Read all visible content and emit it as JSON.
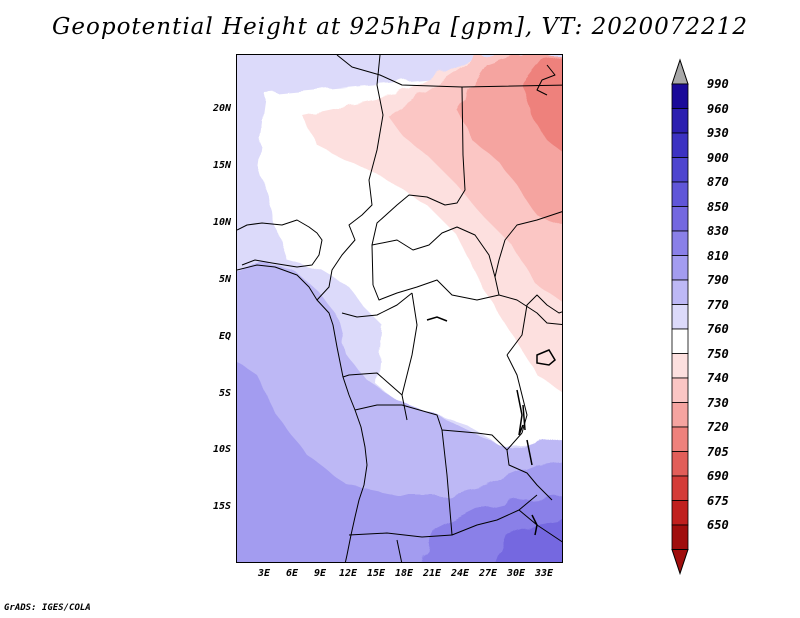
{
  "title": "Geopotential Height at 925hPa [gpm], VT: 2020072212",
  "credit": "GrADS: IGES/COLA",
  "latitude_labels": [
    "20N",
    "15N",
    "10N",
    "5N",
    "EQ",
    "5S",
    "10S",
    "15S"
  ],
  "longitude_labels": [
    "3E",
    "6E",
    "9E",
    "12E",
    "15E",
    "18E",
    "21E",
    "24E",
    "27E",
    "30E",
    "33E"
  ],
  "colorbar": {
    "levels": [
      "990",
      "960",
      "930",
      "900",
      "870",
      "850",
      "830",
      "810",
      "790",
      "770",
      "760",
      "750",
      "740",
      "730",
      "720",
      "705",
      "690",
      "675",
      "650"
    ],
    "colors": [
      "#1a0a99",
      "#2c1fb0",
      "#3c32c2",
      "#4e45cf",
      "#6056d8",
      "#7468e0",
      "#8a80e8",
      "#a39cf0",
      "#bdb8f5",
      "#dcdafa",
      "#ffffff",
      "#fde0df",
      "#fbc6c4",
      "#f5a4a0",
      "#ee817c",
      "#e25e59",
      "#d43c38",
      "#c0201e",
      "#a00e0d"
    ],
    "top_arrow_color": "#a8a8a8",
    "bottom_arrow_color": "#a00e0d"
  }
}
